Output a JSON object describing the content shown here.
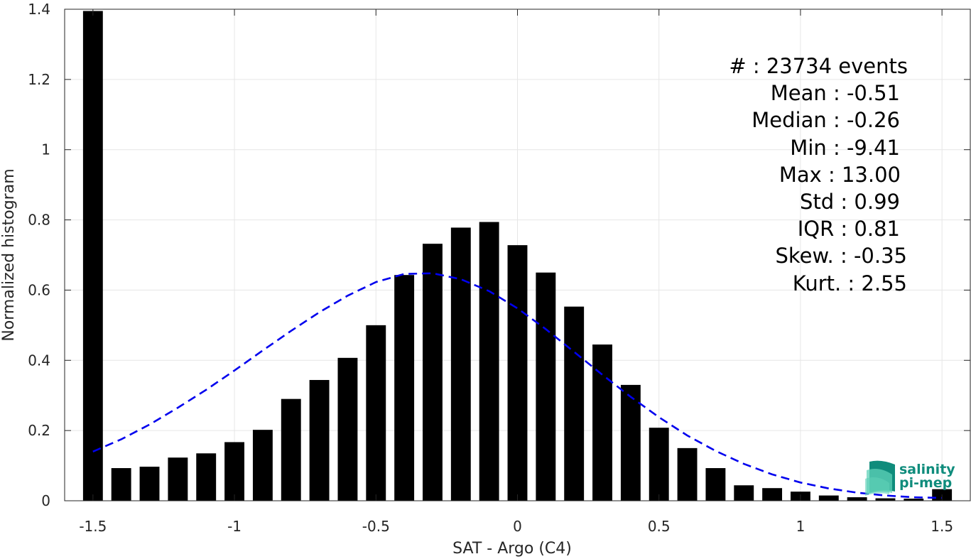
{
  "chart_data": {
    "type": "bar",
    "xlabel": "SAT - Argo (C4)",
    "ylabel": "Normalized histogram",
    "xlim": [
      -1.6,
      1.6
    ],
    "ylim": [
      0,
      1.4
    ],
    "grid": true,
    "x_ticks": [
      -1.5,
      -1,
      -0.5,
      0,
      0.5,
      1,
      1.5
    ],
    "x_tick_labels": [
      "-1.5",
      "-1",
      "-0.5",
      "0",
      "0.5",
      "1",
      "1.5"
    ],
    "y_ticks": [
      0,
      0.2,
      0.4,
      0.6,
      0.8,
      1,
      1.2,
      1.4
    ],
    "y_tick_labels": [
      "0",
      "0.2",
      "0.4",
      "0.6",
      "0.8",
      "1",
      "1.2",
      "1.4"
    ],
    "bar_width": 0.07,
    "bar_color": "#000000",
    "x": [
      -1.5,
      -1.4,
      -1.3,
      -1.2,
      -1.1,
      -1.0,
      -0.9,
      -0.8,
      -0.7,
      -0.6,
      -0.5,
      -0.4,
      -0.3,
      -0.2,
      -0.1,
      0.0,
      0.1,
      0.2,
      0.3,
      0.4,
      0.5,
      0.6,
      0.7,
      0.8,
      0.9,
      1.0,
      1.1,
      1.2,
      1.3,
      1.4,
      1.5
    ],
    "values": [
      1.395,
      0.093,
      0.097,
      0.123,
      0.135,
      0.167,
      0.202,
      0.29,
      0.344,
      0.407,
      0.5,
      0.643,
      0.732,
      0.778,
      0.794,
      0.728,
      0.65,
      0.553,
      0.445,
      0.33,
      0.208,
      0.15,
      0.093,
      0.044,
      0.036,
      0.026,
      0.015,
      0.01,
      0.007,
      0.006,
      0.033
    ],
    "fit_curve": {
      "style": "dashed",
      "color": "#0000ee",
      "x": [
        -1.5,
        -1.4,
        -1.3,
        -1.2,
        -1.1,
        -1.0,
        -0.9,
        -0.8,
        -0.7,
        -0.6,
        -0.5,
        -0.4,
        -0.3,
        -0.2,
        -0.1,
        0.0,
        0.1,
        0.2,
        0.3,
        0.4,
        0.5,
        0.6,
        0.7,
        0.8,
        0.9,
        1.0,
        1.1,
        1.2,
        1.3,
        1.4,
        1.5
      ],
      "y": [
        0.14,
        0.175,
        0.217,
        0.265,
        0.316,
        0.371,
        0.428,
        0.484,
        0.537,
        0.584,
        0.623,
        0.646,
        0.648,
        0.631,
        0.597,
        0.548,
        0.489,
        0.424,
        0.359,
        0.296,
        0.238,
        0.186,
        0.142,
        0.105,
        0.075,
        0.052,
        0.035,
        0.023,
        0.015,
        0.01,
        0.008
      ]
    },
    "annotations": {
      "count": "#  : 23734 events",
      "mean": "Mean : -0.51",
      "median": "Median : -0.26",
      "min": "Min : -9.41",
      "max": "Max : 13.00",
      "std": "Std : 0.99",
      "iqr": "IQR : 0.81",
      "skew": "Skew. : -0.35",
      "kurt": "Kurt. : 2.55"
    }
  },
  "logo": {
    "line1": "salinity",
    "line2": "pi-mep",
    "color_dark": "#0f8c7c",
    "color_light": "#5fd1b8"
  }
}
